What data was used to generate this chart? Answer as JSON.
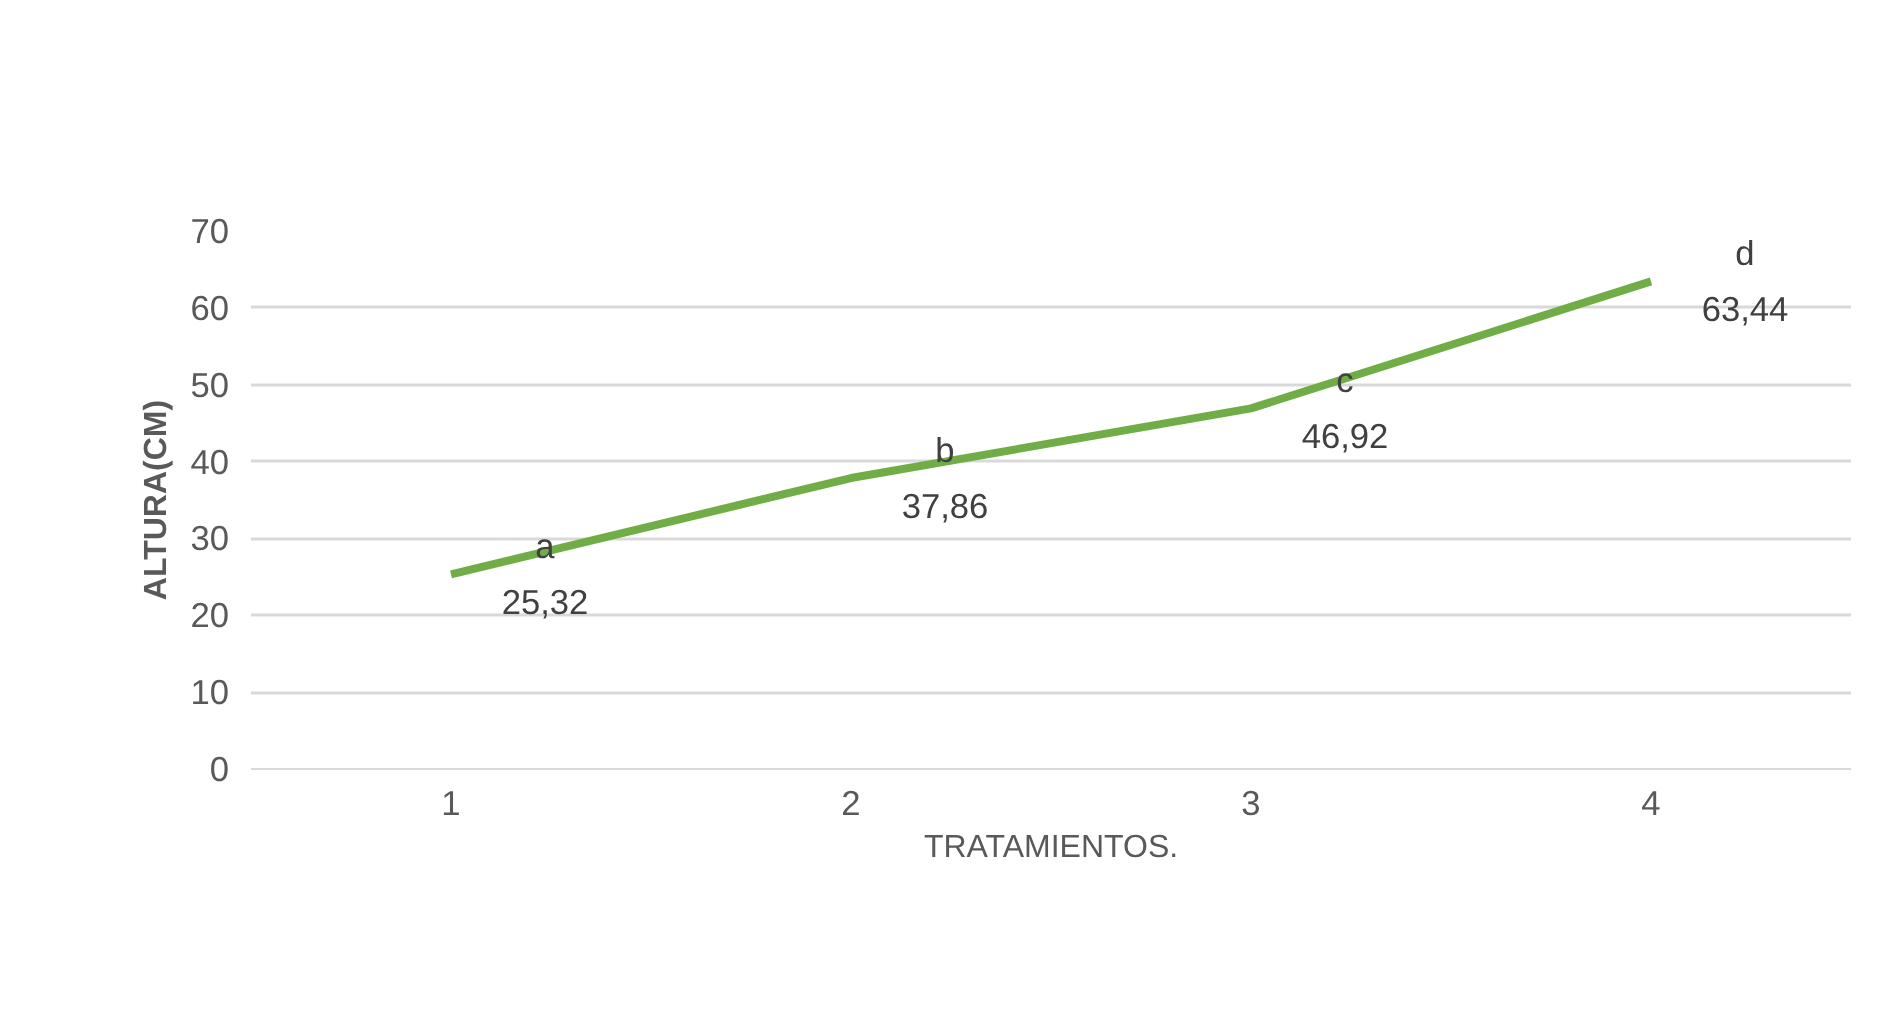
{
  "chart_data": {
    "type": "line",
    "xlabel": "TRATAMIENTOS.",
    "ylabel": "ALTURA(CM)",
    "categories": [
      "1",
      "2",
      "3",
      "4"
    ],
    "series": [
      {
        "color": "#70ad47",
        "values": [
          25.32,
          37.86,
          46.92,
          63.44
        ],
        "value_labels": [
          "25,32",
          "37,86",
          "46,92",
          "63,44"
        ]
      }
    ],
    "annotations": [
      {
        "text": "a",
        "x": "1",
        "y": 25.32
      },
      {
        "text": "b",
        "x": "2",
        "y": 37.86
      },
      {
        "text": "c",
        "x": "3",
        "y": 46.92
      },
      {
        "text": "d",
        "x": "4",
        "y": 63.44
      }
    ],
    "ylim": [
      0,
      70
    ],
    "yticks": [
      0,
      10,
      20,
      30,
      40,
      50,
      60,
      70
    ],
    "grid": "y",
    "marker": "none",
    "line_style": "solid"
  }
}
